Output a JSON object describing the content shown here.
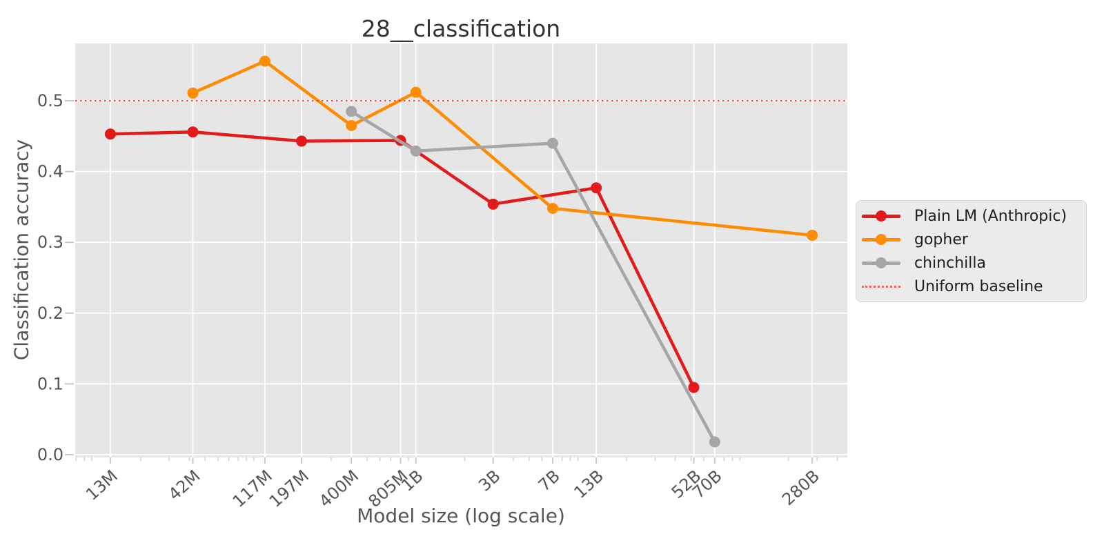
{
  "chart_data": {
    "type": "line",
    "title": "28__classification",
    "xlabel": "Model size (log scale)",
    "ylabel": "Classification accuracy",
    "xscale": "log",
    "xlim_log10": [
      6.897,
      11.664
    ],
    "ylim": [
      -0.004,
      0.581
    ],
    "grid": true,
    "plot_bg_color": "#e6e6e6",
    "grid_color": "#ffffff",
    "tick_color": "#c9c9c9",
    "tick_label_color": "#555555",
    "y_ticks": [
      0.0,
      0.1,
      0.2,
      0.3,
      0.4,
      0.5
    ],
    "y_tick_labels": [
      "0.0",
      "0.1",
      "0.2",
      "0.3",
      "0.4",
      "0.5"
    ],
    "x_ticks": [
      {
        "label": "13M",
        "value": 13000000
      },
      {
        "label": "42M",
        "value": 42000000
      },
      {
        "label": "117M",
        "value": 117000000
      },
      {
        "label": "197M",
        "value": 197000000
      },
      {
        "label": "400M",
        "value": 400000000
      },
      {
        "label": "805M",
        "value": 805000000
      },
      {
        "label": "1B",
        "value": 1000000000
      },
      {
        "label": "3B",
        "value": 3000000000
      },
      {
        "label": "7B",
        "value": 7000000000
      },
      {
        "label": "13B",
        "value": 13000000000
      },
      {
        "label": "52B",
        "value": 52000000000
      },
      {
        "label": "70B",
        "value": 70000000000
      },
      {
        "label": "280B",
        "value": 280000000000
      }
    ],
    "series": [
      {
        "name": "Plain LM (Anthropic)",
        "color": "#e31a1a",
        "points": [
          {
            "x_label": "13M",
            "x": 13000000,
            "y": 0.453
          },
          {
            "x_label": "42M",
            "x": 42000000,
            "y": 0.456
          },
          {
            "x_label": "197M",
            "x": 197000000,
            "y": 0.443
          },
          {
            "x_label": "805M",
            "x": 805000000,
            "y": 0.444
          },
          {
            "x_label": "3B",
            "x": 3000000000,
            "y": 0.354
          },
          {
            "x_label": "13B",
            "x": 13000000000,
            "y": 0.377
          },
          {
            "x_label": "52B",
            "x": 52000000000,
            "y": 0.095
          }
        ]
      },
      {
        "name": "gopher",
        "color": "#ff8c00",
        "points": [
          {
            "x_label": "42M",
            "x": 42000000,
            "y": 0.511
          },
          {
            "x_label": "117M",
            "x": 117000000,
            "y": 0.556
          },
          {
            "x_label": "400M",
            "x": 400000000,
            "y": 0.465
          },
          {
            "x_label": "1B",
            "x": 1000000000,
            "y": 0.512
          },
          {
            "x_label": "7B",
            "x": 7000000000,
            "y": 0.348
          },
          {
            "x_label": "280B",
            "x": 280000000000,
            "y": 0.31
          }
        ]
      },
      {
        "name": "chinchilla",
        "color": "#a6a6a6",
        "points": [
          {
            "x_label": "400M",
            "x": 400000000,
            "y": 0.485
          },
          {
            "x_label": "1B",
            "x": 1000000000,
            "y": 0.429
          },
          {
            "x_label": "7B",
            "x": 7000000000,
            "y": 0.44
          },
          {
            "x_label": "70B",
            "x": 70000000000,
            "y": 0.018
          }
        ]
      }
    ],
    "baseline": {
      "label": "Uniform baseline",
      "value": 0.5,
      "color": "#ff1f1f",
      "style": "dotted"
    },
    "legend_position": "center right outside"
  }
}
